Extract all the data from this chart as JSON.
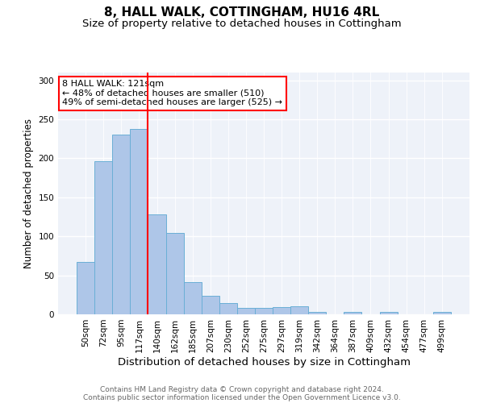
{
  "title1": "8, HALL WALK, COTTINGHAM, HU16 4RL",
  "title2": "Size of property relative to detached houses in Cottingham",
  "xlabel": "Distribution of detached houses by size in Cottingham",
  "ylabel": "Number of detached properties",
  "bar_labels": [
    "50sqm",
    "72sqm",
    "95sqm",
    "117sqm",
    "140sqm",
    "162sqm",
    "185sqm",
    "207sqm",
    "230sqm",
    "252sqm",
    "275sqm",
    "297sqm",
    "319sqm",
    "342sqm",
    "364sqm",
    "387sqm",
    "409sqm",
    "432sqm",
    "454sqm",
    "477sqm",
    "499sqm"
  ],
  "bar_values": [
    67,
    196,
    230,
    238,
    128,
    104,
    41,
    24,
    14,
    8,
    8,
    9,
    10,
    3,
    0,
    3,
    0,
    3,
    0,
    0,
    3
  ],
  "bar_color": "#aec6e8",
  "bar_edge_color": "#6aafd6",
  "vline_x_idx": 3,
  "vline_color": "red",
  "annotation_text": "8 HALL WALK: 121sqm\n← 48% of detached houses are smaller (510)\n49% of semi-detached houses are larger (525) →",
  "annotation_box_color": "white",
  "annotation_box_edge_color": "red",
  "ylim": [
    0,
    310
  ],
  "yticks": [
    0,
    50,
    100,
    150,
    200,
    250,
    300
  ],
  "footnote_line1": "Contains HM Land Registry data © Crown copyright and database right 2024.",
  "footnote_line2": "Contains public sector information licensed under the Open Government Licence v3.0.",
  "title1_fontsize": 11,
  "title2_fontsize": 9.5,
  "xlabel_fontsize": 9.5,
  "ylabel_fontsize": 8.5,
  "tick_fontsize": 7.5,
  "annotation_fontsize": 8,
  "footnote_fontsize": 6.5,
  "background_color": "#eef2f9"
}
